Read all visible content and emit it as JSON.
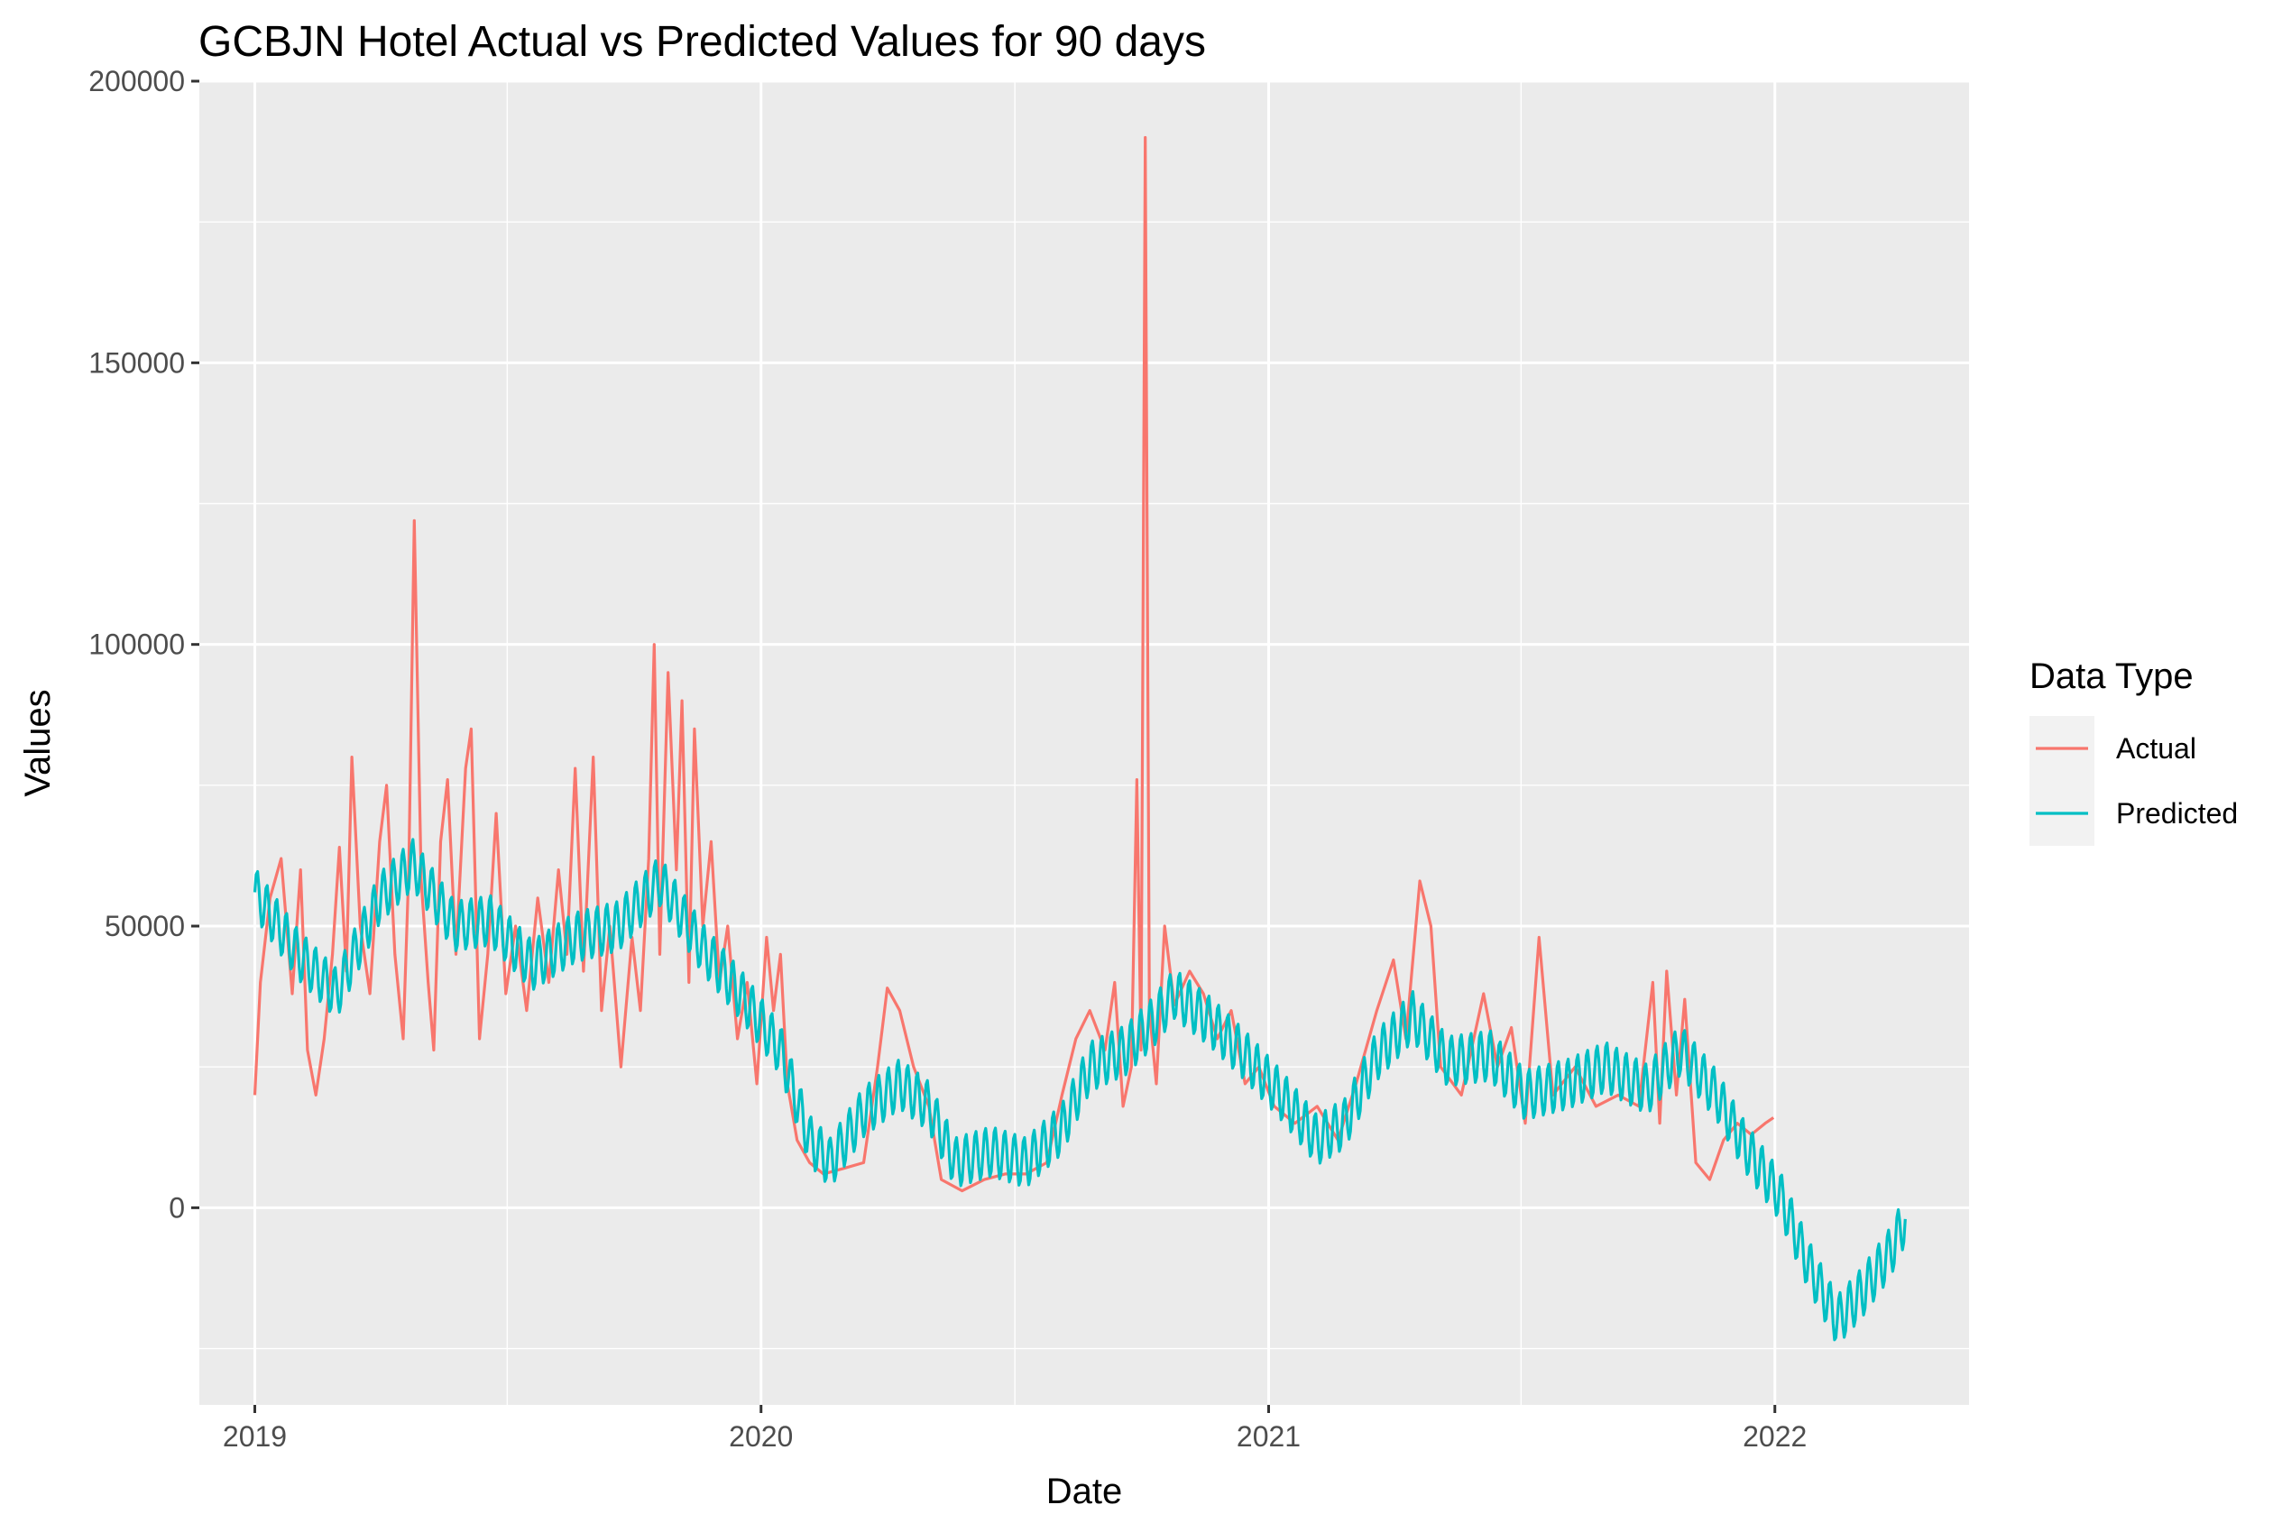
{
  "chart_data": {
    "type": "line",
    "title": "GCBJN Hotel Actual vs Predicted Values for 90 days",
    "xlabel": "Date",
    "ylabel": "Values",
    "x_ticks": [
      "2019",
      "2020",
      "2021",
      "2022"
    ],
    "y_ticks": [
      "0",
      "50000",
      "100000",
      "150000",
      "200000"
    ],
    "xlim": [
      "2018-11-22",
      "2022-05-21"
    ],
    "ylim": [
      -35000,
      200000
    ],
    "grid": true,
    "legend": {
      "title": "Data Type",
      "placement": "right"
    },
    "series": [
      {
        "name": "Actual",
        "color": "#F8766D",
        "points": [
          [
            "2019-01-01",
            20000
          ],
          [
            "2019-01-05",
            40000
          ],
          [
            "2019-01-12",
            55000
          ],
          [
            "2019-01-20",
            62000
          ],
          [
            "2019-01-28",
            38000
          ],
          [
            "2019-02-03",
            60000
          ],
          [
            "2019-02-08",
            28000
          ],
          [
            "2019-02-14",
            20000
          ],
          [
            "2019-02-20",
            30000
          ],
          [
            "2019-02-26",
            45000
          ],
          [
            "2019-03-03",
            64000
          ],
          [
            "2019-03-08",
            42000
          ],
          [
            "2019-03-12",
            80000
          ],
          [
            "2019-03-18",
            50000
          ],
          [
            "2019-03-25",
            38000
          ],
          [
            "2019-04-01",
            65000
          ],
          [
            "2019-04-06",
            75000
          ],
          [
            "2019-04-12",
            45000
          ],
          [
            "2019-04-18",
            30000
          ],
          [
            "2019-04-22",
            60000
          ],
          [
            "2019-04-26",
            122000
          ],
          [
            "2019-05-01",
            58000
          ],
          [
            "2019-05-06",
            40000
          ],
          [
            "2019-05-10",
            28000
          ],
          [
            "2019-05-15",
            65000
          ],
          [
            "2019-05-20",
            76000
          ],
          [
            "2019-05-26",
            45000
          ],
          [
            "2019-06-02",
            78000
          ],
          [
            "2019-06-06",
            85000
          ],
          [
            "2019-06-12",
            30000
          ],
          [
            "2019-06-18",
            45000
          ],
          [
            "2019-06-24",
            70000
          ],
          [
            "2019-07-01",
            38000
          ],
          [
            "2019-07-08",
            50000
          ],
          [
            "2019-07-16",
            35000
          ],
          [
            "2019-07-24",
            55000
          ],
          [
            "2019-08-01",
            40000
          ],
          [
            "2019-08-08",
            60000
          ],
          [
            "2019-08-14",
            45000
          ],
          [
            "2019-08-20",
            78000
          ],
          [
            "2019-08-26",
            42000
          ],
          [
            "2019-09-02",
            80000
          ],
          [
            "2019-09-08",
            35000
          ],
          [
            "2019-09-14",
            50000
          ],
          [
            "2019-09-22",
            25000
          ],
          [
            "2019-09-30",
            48000
          ],
          [
            "2019-10-06",
            35000
          ],
          [
            "2019-10-12",
            62000
          ],
          [
            "2019-10-16",
            100000
          ],
          [
            "2019-10-20",
            45000
          ],
          [
            "2019-10-26",
            95000
          ],
          [
            "2019-11-01",
            60000
          ],
          [
            "2019-11-05",
            90000
          ],
          [
            "2019-11-10",
            40000
          ],
          [
            "2019-11-14",
            85000
          ],
          [
            "2019-11-20",
            50000
          ],
          [
            "2019-11-26",
            65000
          ],
          [
            "2019-12-02",
            40000
          ],
          [
            "2019-12-08",
            50000
          ],
          [
            "2019-12-15",
            30000
          ],
          [
            "2019-12-22",
            40000
          ],
          [
            "2019-12-29",
            22000
          ],
          [
            "2020-01-05",
            48000
          ],
          [
            "2020-01-10",
            35000
          ],
          [
            "2020-01-15",
            45000
          ],
          [
            "2020-01-20",
            22000
          ],
          [
            "2020-01-27",
            12000
          ],
          [
            "2020-02-05",
            8000
          ],
          [
            "2020-02-15",
            6000
          ],
          [
            "2020-03-01",
            7000
          ],
          [
            "2020-03-15",
            8000
          ],
          [
            "2020-03-25",
            25000
          ],
          [
            "2020-04-01",
            39000
          ],
          [
            "2020-04-10",
            35000
          ],
          [
            "2020-04-20",
            25000
          ],
          [
            "2020-05-01",
            18000
          ],
          [
            "2020-05-10",
            5000
          ],
          [
            "2020-05-25",
            3000
          ],
          [
            "2020-06-10",
            5000
          ],
          [
            "2020-06-25",
            6000
          ],
          [
            "2020-07-10",
            6000
          ],
          [
            "2020-07-25",
            8000
          ],
          [
            "2020-08-05",
            20000
          ],
          [
            "2020-08-15",
            30000
          ],
          [
            "2020-08-25",
            35000
          ],
          [
            "2020-09-05",
            28000
          ],
          [
            "2020-09-12",
            40000
          ],
          [
            "2020-09-18",
            18000
          ],
          [
            "2020-09-24",
            25000
          ],
          [
            "2020-09-28",
            76000
          ],
          [
            "2020-10-01",
            28000
          ],
          [
            "2020-10-04",
            190000
          ],
          [
            "2020-10-07",
            35000
          ],
          [
            "2020-10-12",
            22000
          ],
          [
            "2020-10-18",
            50000
          ],
          [
            "2020-10-25",
            36000
          ],
          [
            "2020-11-05",
            42000
          ],
          [
            "2020-11-15",
            38000
          ],
          [
            "2020-11-25",
            30000
          ],
          [
            "2020-12-05",
            35000
          ],
          [
            "2020-12-15",
            22000
          ],
          [
            "2020-12-25",
            25000
          ],
          [
            "2021-01-05",
            18000
          ],
          [
            "2021-01-20",
            15000
          ],
          [
            "2021-02-05",
            18000
          ],
          [
            "2021-02-20",
            12000
          ],
          [
            "2021-03-05",
            22000
          ],
          [
            "2021-03-20",
            35000
          ],
          [
            "2021-04-01",
            44000
          ],
          [
            "2021-04-10",
            30000
          ],
          [
            "2021-04-20",
            58000
          ],
          [
            "2021-04-28",
            50000
          ],
          [
            "2021-05-05",
            25000
          ],
          [
            "2021-05-20",
            20000
          ],
          [
            "2021-06-05",
            38000
          ],
          [
            "2021-06-15",
            25000
          ],
          [
            "2021-06-25",
            32000
          ],
          [
            "2021-07-05",
            15000
          ],
          [
            "2021-07-15",
            48000
          ],
          [
            "2021-07-25",
            20000
          ],
          [
            "2021-08-10",
            25000
          ],
          [
            "2021-08-25",
            18000
          ],
          [
            "2021-09-10",
            20000
          ],
          [
            "2021-09-25",
            18000
          ],
          [
            "2021-10-05",
            40000
          ],
          [
            "2021-10-10",
            15000
          ],
          [
            "2021-10-15",
            42000
          ],
          [
            "2021-10-22",
            20000
          ],
          [
            "2021-10-28",
            37000
          ],
          [
            "2021-11-05",
            8000
          ],
          [
            "2021-11-15",
            5000
          ],
          [
            "2021-11-25",
            12000
          ],
          [
            "2021-12-05",
            15000
          ],
          [
            "2021-12-15",
            13000
          ],
          [
            "2021-12-25",
            15000
          ],
          [
            "2021-12-31",
            16000
          ]
        ]
      },
      {
        "name": "Predicted",
        "color": "#00BFC4",
        "points": [
          [
            "2019-01-01",
            56000
          ],
          [
            "2019-02-01",
            45000
          ],
          [
            "2019-03-01",
            38000
          ],
          [
            "2019-04-01",
            55000
          ],
          [
            "2019-04-25",
            61000
          ],
          [
            "2019-05-25",
            50000
          ],
          [
            "2019-06-20",
            51000
          ],
          [
            "2019-07-20",
            43000
          ],
          [
            "2019-08-20",
            48000
          ],
          [
            "2019-09-20",
            50000
          ],
          [
            "2019-10-20",
            58000
          ],
          [
            "2019-11-20",
            46000
          ],
          [
            "2019-12-20",
            37000
          ],
          [
            "2020-01-15",
            28000
          ],
          [
            "2020-02-05",
            12000
          ],
          [
            "2020-02-20",
            8000
          ],
          [
            "2020-03-15",
            17000
          ],
          [
            "2020-04-10",
            22000
          ],
          [
            "2020-05-01",
            18000
          ],
          [
            "2020-05-20",
            8000
          ],
          [
            "2020-06-15",
            10000
          ],
          [
            "2020-07-10",
            8000
          ],
          [
            "2020-08-05",
            14000
          ],
          [
            "2020-08-25",
            25000
          ],
          [
            "2020-09-20",
            28000
          ],
          [
            "2020-10-10",
            33000
          ],
          [
            "2020-10-25",
            38000
          ],
          [
            "2020-11-20",
            33000
          ],
          [
            "2020-12-15",
            27000
          ],
          [
            "2021-01-10",
            20000
          ],
          [
            "2021-02-05",
            12000
          ],
          [
            "2021-02-25",
            15000
          ],
          [
            "2021-03-20",
            27000
          ],
          [
            "2021-04-15",
            34000
          ],
          [
            "2021-05-10",
            26000
          ],
          [
            "2021-06-10",
            27000
          ],
          [
            "2021-07-05",
            20000
          ],
          [
            "2021-08-05",
            22000
          ],
          [
            "2021-09-01",
            25000
          ],
          [
            "2021-10-01",
            21000
          ],
          [
            "2021-10-25",
            28000
          ],
          [
            "2021-11-20",
            20000
          ],
          [
            "2021-12-10",
            11000
          ],
          [
            "2022-01-05",
            2000
          ],
          [
            "2022-01-25",
            -10000
          ],
          [
            "2022-02-15",
            -20000
          ],
          [
            "2022-03-05",
            -15000
          ],
          [
            "2022-03-25",
            -8000
          ],
          [
            "2022-04-05",
            -2000
          ]
        ]
      }
    ]
  }
}
